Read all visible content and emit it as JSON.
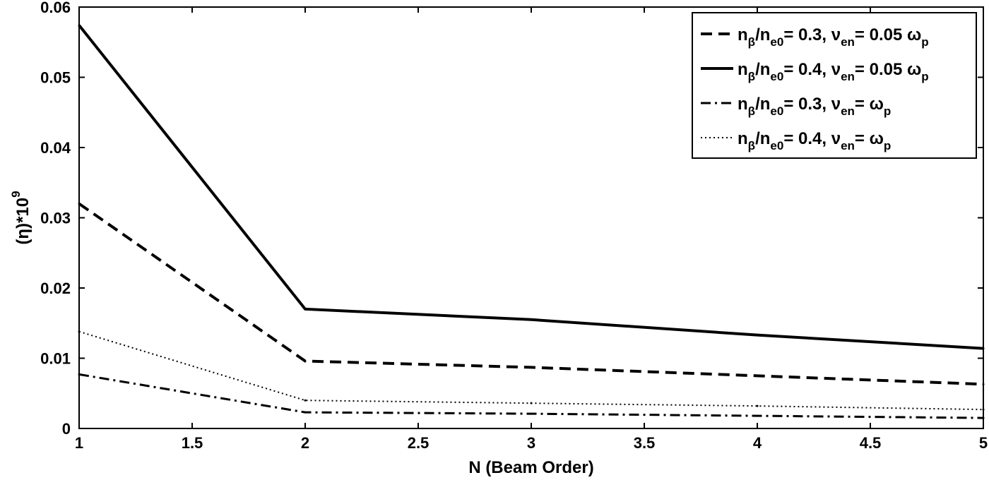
{
  "chart_data": {
    "type": "line",
    "title": "",
    "xlabel": "N (Beam Order)",
    "ylabel": "(η)*10",
    "ylabel_exponent": "9",
    "xlim": [
      1,
      5
    ],
    "ylim": [
      0,
      0.06
    ],
    "x_ticks": [
      "1",
      "1.5",
      "2",
      "2.5",
      "3",
      "3.5",
      "4",
      "4.5",
      "5"
    ],
    "y_ticks": [
      "0",
      "0.01",
      "0.02",
      "0.03",
      "0.04",
      "0.05",
      "0.06"
    ],
    "grid": false,
    "legend_position": "top-right",
    "x": [
      1,
      2,
      3,
      4,
      5
    ],
    "series": [
      {
        "style": "dashed",
        "label": {
          "n": "n",
          "nsub": "β",
          "sep": "/n",
          "esub": "e0",
          "val": "= 0.3, ",
          "nu": "ν",
          "nusub": "en",
          "rhs": "= 0.05 ω",
          "rsub": "p"
        },
        "values": [
          0.032,
          0.0096,
          0.0087,
          0.0075,
          0.0063
        ]
      },
      {
        "style": "solid",
        "label": {
          "n": "n",
          "nsub": "β",
          "sep": "/n",
          "esub": "e0",
          "val": "= 0.4, ",
          "nu": "ν",
          "nusub": "en",
          "rhs": "= 0.05 ω",
          "rsub": "p"
        },
        "values": [
          0.0574,
          0.017,
          0.0155,
          0.0133,
          0.0114
        ]
      },
      {
        "style": "dashdot",
        "label": {
          "n": "n",
          "nsub": "β",
          "sep": "/n",
          "esub": "e0",
          "val": "= 0.3, ",
          "nu": "ν",
          "nusub": "en",
          "rhs": "= ω",
          "rsub": "p"
        },
        "values": [
          0.0077,
          0.0023,
          0.0021,
          0.0018,
          0.0015
        ]
      },
      {
        "style": "dotted",
        "label": {
          "n": "n",
          "nsub": "β",
          "sep": "/n",
          "esub": "e0",
          "val": "= 0.4, ",
          "nu": "ν",
          "nusub": "en",
          "rhs": "= ω",
          "rsub": "p"
        },
        "values": [
          0.0138,
          0.004,
          0.0036,
          0.0032,
          0.0027
        ]
      }
    ]
  }
}
